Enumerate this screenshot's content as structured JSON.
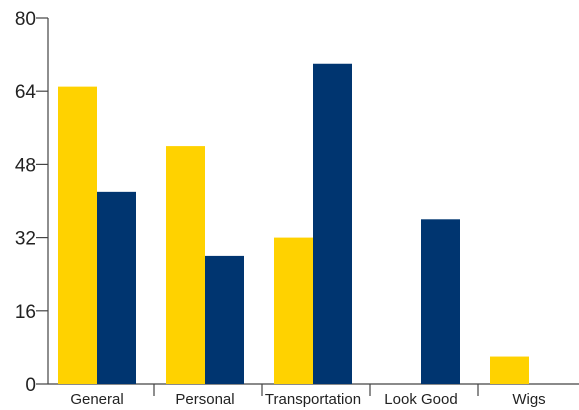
{
  "chart_data": {
    "type": "bar",
    "title": "",
    "xlabel": "",
    "ylabel": "",
    "categories": [
      "General",
      "Personal",
      "Transportation",
      "Look Good",
      "Wigs"
    ],
    "series": [
      {
        "values": [
          65,
          52,
          32,
          0,
          6
        ],
        "color": "#FFD200"
      },
      {
        "values": [
          42,
          28,
          70,
          36,
          0
        ],
        "color": "#003570"
      }
    ],
    "ylim": [
      0,
      80
    ],
    "yticks": [
      0,
      16,
      32,
      48,
      64,
      80
    ],
    "grid": false,
    "legend": "none"
  }
}
